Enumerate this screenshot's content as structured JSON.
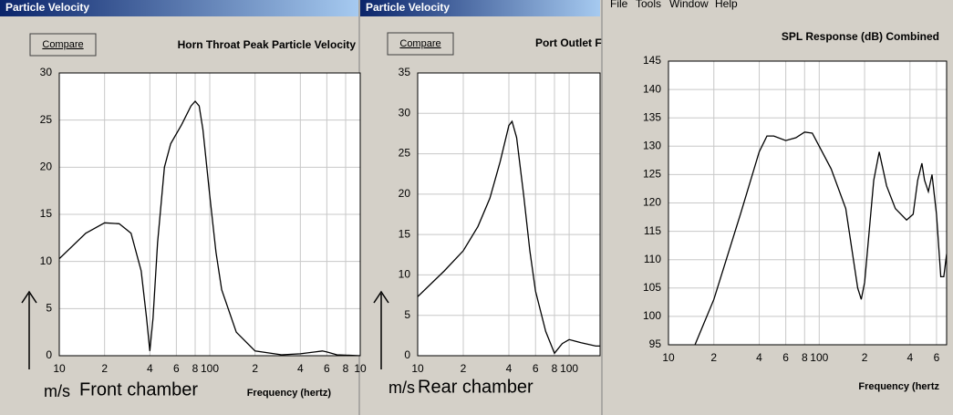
{
  "windows": [
    {
      "title": "Particle Velocity",
      "button": "Compare"
    },
    {
      "title": "Particle Velocity",
      "button": "Compare"
    }
  ],
  "menu": [
    "File",
    "Tools",
    "Window",
    "Help"
  ],
  "chart_data": [
    {
      "type": "line",
      "title": "Horn Throat Peak Particle Velocity",
      "x_label": "Frequency (hertz)",
      "annotations": [
        "m/s",
        "Front chamber"
      ],
      "log_x": true,
      "grid": true,
      "color": "#000000",
      "xlim": [
        10,
        1000
      ],
      "ylim": [
        0,
        30
      ],
      "xticks": [
        10,
        {
          "value": 20,
          "label": "2"
        },
        {
          "value": 40,
          "label": "4"
        },
        {
          "value": 60,
          "label": "6"
        },
        {
          "value": 80,
          "label": "8"
        },
        100,
        {
          "value": 200,
          "label": "2"
        },
        {
          "value": 400,
          "label": "4"
        },
        {
          "value": 600,
          "label": "6"
        },
        {
          "value": 800,
          "label": "8"
        },
        {
          "value": 1000,
          "label": "10"
        }
      ],
      "yticks": [
        0,
        5,
        10,
        15,
        20,
        25,
        30
      ],
      "x": [
        10,
        15,
        20,
        25,
        30,
        35,
        38,
        40,
        42,
        45,
        50,
        55,
        65,
        75,
        80,
        85,
        90,
        100,
        110,
        120,
        150,
        200,
        300,
        400,
        500,
        560,
        600,
        700,
        1000
      ],
      "values": [
        10.3,
        13,
        14.1,
        14,
        13,
        9,
        4,
        0.5,
        4,
        12,
        20,
        22.5,
        24.5,
        26.5,
        27,
        26.5,
        24,
        17,
        11,
        7,
        2.5,
        0.5,
        0.1,
        0.2,
        0.4,
        0.5,
        0.4,
        0.1,
        0
      ]
    },
    {
      "type": "line",
      "title": "Port Outlet F",
      "annotations": [
        "m/s",
        "Rear chamber"
      ],
      "log_x": true,
      "grid": true,
      "color": "#000000",
      "xlim": [
        10,
        160
      ],
      "ylim": [
        0,
        35
      ],
      "xticks": [
        10,
        {
          "value": 20,
          "label": "2"
        },
        {
          "value": 40,
          "label": "4"
        },
        {
          "value": 60,
          "label": "6"
        },
        {
          "value": 80,
          "label": "8"
        },
        100
      ],
      "yticks": [
        0,
        5,
        10,
        15,
        20,
        25,
        30,
        35
      ],
      "x": [
        10,
        15,
        20,
        25,
        30,
        35,
        40,
        42,
        45,
        50,
        55,
        60,
        70,
        80,
        90,
        100,
        120,
        150,
        160
      ],
      "values": [
        7.3,
        10.5,
        13,
        16,
        19.5,
        24,
        28.5,
        29,
        27,
        20,
        13,
        8,
        3,
        0.3,
        1.5,
        2,
        1.6,
        1.2,
        1.2
      ]
    },
    {
      "type": "line",
      "title": "SPL Response (dB)   Combined",
      "x_label": "Frequency (hertz",
      "log_x": true,
      "grid": true,
      "color": "#000000",
      "xlim": [
        10,
        700
      ],
      "ylim": [
        95,
        145
      ],
      "xticks": [
        10,
        {
          "value": 20,
          "label": "2"
        },
        {
          "value": 40,
          "label": "4"
        },
        {
          "value": 60,
          "label": "6"
        },
        {
          "value": 80,
          "label": "8"
        },
        100,
        {
          "value": 200,
          "label": "2"
        },
        {
          "value": 400,
          "label": "4"
        },
        {
          "value": 600,
          "label": "6"
        }
      ],
      "yticks": [
        95,
        100,
        105,
        110,
        115,
        120,
        125,
        130,
        135,
        140,
        145
      ],
      "x": [
        15,
        20,
        30,
        40,
        45,
        50,
        60,
        70,
        80,
        90,
        100,
        120,
        150,
        180,
        190,
        200,
        230,
        250,
        280,
        320,
        380,
        420,
        450,
        480,
        500,
        530,
        560,
        600,
        640,
        670,
        700
      ],
      "values": [
        95,
        103,
        118,
        129,
        131.8,
        131.8,
        131,
        131.5,
        132.5,
        132.3,
        130,
        126,
        119,
        105,
        103,
        106,
        124,
        129,
        123,
        119,
        117,
        118,
        124,
        127,
        124,
        122,
        125,
        118,
        107,
        107,
        111
      ]
    }
  ]
}
